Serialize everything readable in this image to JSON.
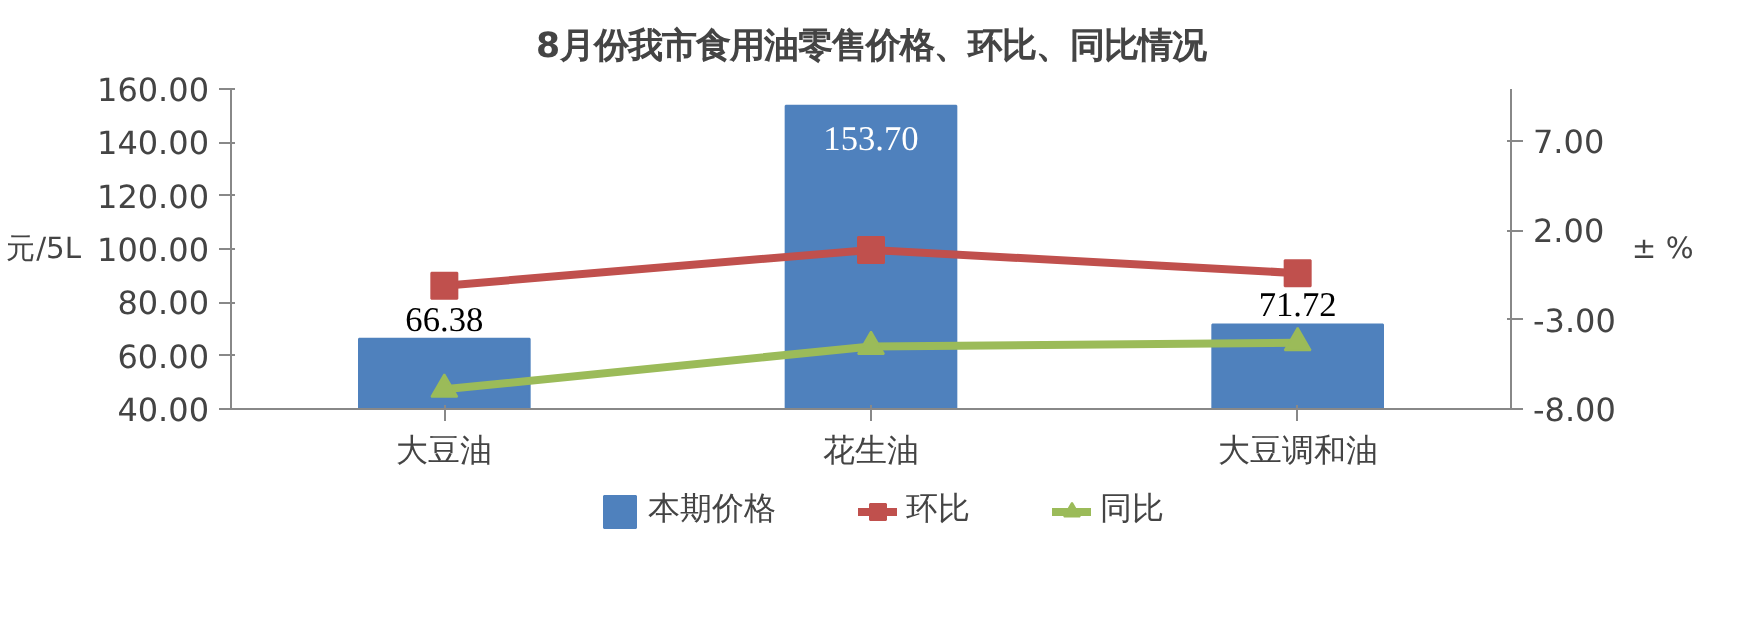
{
  "chart_data": {
    "type": "bar",
    "title": "8月份我市食用油零售价格、环比、同比情况",
    "categories": [
      "大豆油",
      "花生油",
      "大豆调和油"
    ],
    "series": [
      {
        "name": "本期价格",
        "color": "#4f81bd",
        "values": [
          66.38,
          153.7,
          71.72
        ],
        "value_labels": [
          "66.38",
          "153.70",
          "71.72"
        ]
      },
      {
        "name": "环比",
        "type": "line",
        "axis": "y2",
        "color": "#c0504d",
        "marker": "square",
        "values": [
          -1.1,
          0.9,
          -0.4
        ]
      },
      {
        "name": "同比",
        "type": "line",
        "axis": "y2",
        "color": "#9bbb59",
        "marker": "triangle",
        "values": [
          -6.9,
          -4.5,
          -4.3
        ]
      }
    ],
    "ylabel": "元/5L",
    "y2label": "± %",
    "ylim": [
      40,
      160
    ],
    "yticks": [
      {
        "value": 40,
        "label": "40.00"
      },
      {
        "value": 60,
        "label": "60.00"
      },
      {
        "value": 80,
        "label": "80.00"
      },
      {
        "value": 100,
        "label": "100.00"
      },
      {
        "value": 120,
        "label": "120.00"
      },
      {
        "value": 140,
        "label": "140.00"
      },
      {
        "value": 160,
        "label": "160.00"
      }
    ],
    "y2lim": [
      -8,
      9.9
    ],
    "y2ticks": [
      {
        "value": -8,
        "label": "-8.00"
      },
      {
        "value": -3,
        "label": "-3.00"
      },
      {
        "value": 2,
        "label": "2.00"
      },
      {
        "value": 7,
        "label": "7.00"
      }
    ],
    "legend": "bottom",
    "grid": false,
    "line_style": "solid"
  }
}
